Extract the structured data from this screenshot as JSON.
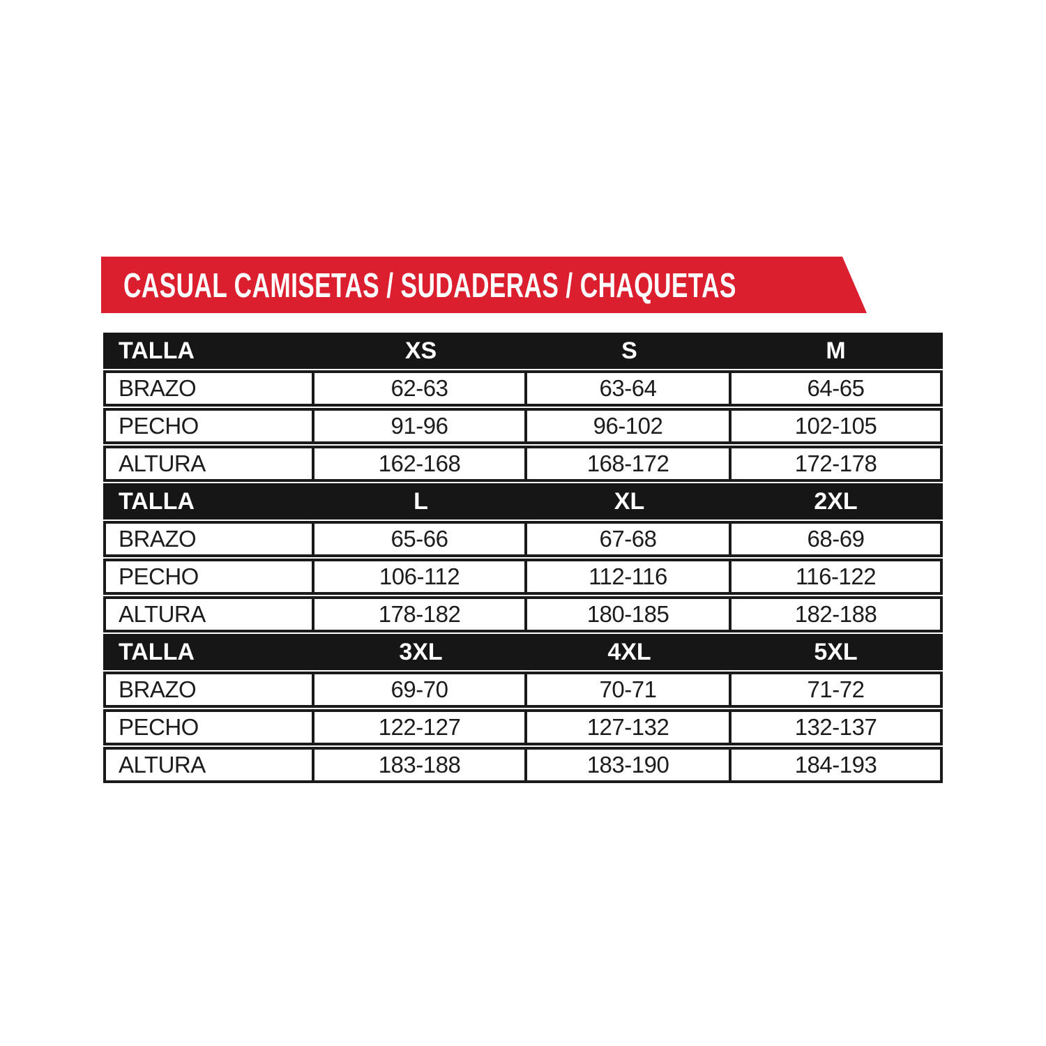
{
  "banner": {
    "title": "CASUAL CAMISETAS / SUDADERAS / CHAQUETAS",
    "background_color": "#db1f2f",
    "text_color": "#ffffff"
  },
  "colors": {
    "page_background": "#ffffff",
    "header_row_background": "#161616",
    "header_row_text": "#ffffff",
    "cell_background": "#ffffff",
    "cell_text": "#1c1c1c",
    "table_border": "#1a1a1a"
  },
  "chart_data": {
    "type": "table",
    "title": "CASUAL CAMISETAS / SUDADERAS / CHAQUETAS",
    "row_header_label": "TALLA",
    "measurement_labels": [
      "BRAZO",
      "PECHO",
      "ALTURA"
    ],
    "groups": [
      {
        "header": [
          "TALLA",
          "XS",
          "S",
          "M"
        ],
        "rows": [
          [
            "BRAZO",
            "62-63",
            "63-64",
            "64-65"
          ],
          [
            "PECHO",
            "91-96",
            "96-102",
            "102-105"
          ],
          [
            "ALTURA",
            "162-168",
            "168-172",
            "172-178"
          ]
        ]
      },
      {
        "header": [
          "TALLA",
          "L",
          "XL",
          "2XL"
        ],
        "rows": [
          [
            "BRAZO",
            "65-66",
            "67-68",
            "68-69"
          ],
          [
            "PECHO",
            "106-112",
            "112-116",
            "116-122"
          ],
          [
            "ALTURA",
            "178-182",
            "180-185",
            "182-188"
          ]
        ]
      },
      {
        "header": [
          "TALLA",
          "3XL",
          "4XL",
          "5XL"
        ],
        "rows": [
          [
            "BRAZO",
            "69-70",
            "70-71",
            "71-72"
          ],
          [
            "PECHO",
            "122-127",
            "127-132",
            "132-137"
          ],
          [
            "ALTURA",
            "183-188",
            "183-190",
            "184-193"
          ]
        ]
      }
    ]
  }
}
